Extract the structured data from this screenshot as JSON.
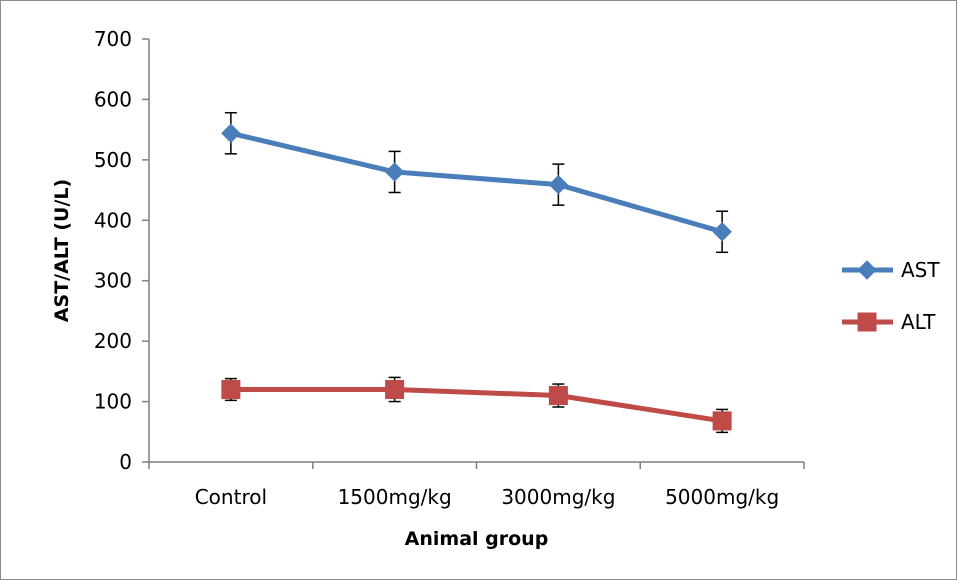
{
  "chart_data": {
    "type": "line",
    "categories": [
      "Control",
      "1500mg/kg",
      "3000mg/kg",
      "5000mg/kg"
    ],
    "xlabel": "Animal group",
    "ylabel": "AST/ALT (U/L)",
    "ylim": [
      0,
      700
    ],
    "yticks": [
      0,
      100,
      200,
      300,
      400,
      500,
      600,
      700
    ],
    "grid": false,
    "legend_position": "right",
    "series": [
      {
        "name": "AST",
        "values": [
          544,
          480,
          459,
          381
        ],
        "errors": [
          34,
          34,
          34,
          34
        ],
        "color": "#4a7ebb",
        "marker": "diamond"
      },
      {
        "name": "ALT",
        "values": [
          120,
          120,
          110,
          68
        ],
        "errors": [
          18,
          20,
          19,
          19
        ],
        "color": "#be4b48",
        "marker": "square"
      }
    ]
  }
}
